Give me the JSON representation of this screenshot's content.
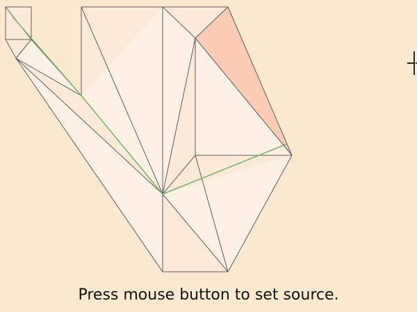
{
  "status": {
    "message": "Press mouse button to set source."
  },
  "colors": {
    "background": "#fbe9cf",
    "triangle_fill": "#fde9d8",
    "triangle_fill_alt": "#fdf1e6",
    "highlight_fill": "#fcccb4",
    "edge_stroke": "#5a5a5a",
    "path_stroke": "#77b567"
  },
  "cursor": {
    "icon": "crosshair-icon"
  }
}
